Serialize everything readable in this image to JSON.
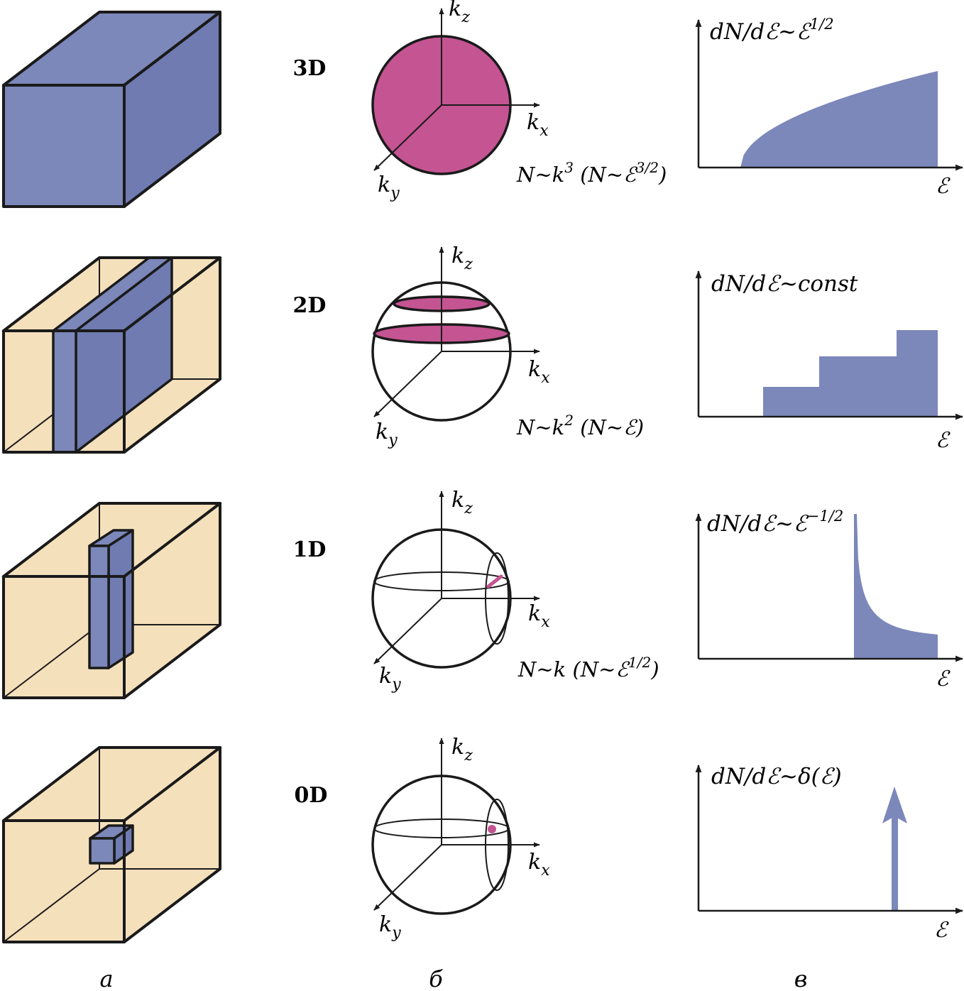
{
  "colors": {
    "blue": "#7c87ba",
    "blue_dark": "#6f7bb1",
    "magenta": "#c45492",
    "beige": "#f5e0bc",
    "stroke": "#1a1a1a"
  },
  "rows": [
    {
      "dim": "3D",
      "kz": "k",
      "kz_sub": "z",
      "kx": "k",
      "kx_sub": "x",
      "ky": "k",
      "ky_sub": "y",
      "scaling": {
        "a": "N~k",
        "a_sup": "3",
        "b": " (N~ℰ",
        "b_sup": "3/2",
        "c": ")"
      },
      "dos": {
        "a": "dN/dℰ~ℰ",
        "a_sup": "1/2"
      },
      "x_axis": "ℰ"
    },
    {
      "dim": "2D",
      "kz": "k",
      "kz_sub": "z",
      "kx": "k",
      "kx_sub": "x",
      "ky": "k",
      "ky_sub": "y",
      "scaling": {
        "a": "N~k",
        "a_sup": "2",
        "b": " (N~ℰ)",
        "b_sup": "",
        "c": ""
      },
      "dos": {
        "a": "dN/dℰ~const",
        "a_sup": ""
      },
      "x_axis": "ℰ"
    },
    {
      "dim": "1D",
      "kz": "k",
      "kz_sub": "z",
      "kx": "k",
      "kx_sub": "x",
      "ky": "k",
      "ky_sub": "y",
      "scaling": {
        "a": "N~k",
        "a_sup": "",
        "b": " (N~ℰ",
        "b_sup": "1/2",
        "c": ")"
      },
      "dos": {
        "a": "dN/dℰ~ℰ",
        "a_sup": "−1/2"
      },
      "x_axis": "ℰ"
    },
    {
      "dim": "0D",
      "kz": "k",
      "kz_sub": "z",
      "kx": "k",
      "kx_sub": "x",
      "ky": "k",
      "ky_sub": "y",
      "scaling": {
        "a": "",
        "a_sup": "",
        "b": "",
        "b_sup": "",
        "c": ""
      },
      "dos": {
        "a": "dN/dℰ~δ(ℰ)",
        "a_sup": ""
      },
      "x_axis": "ℰ"
    }
  ],
  "columns": {
    "a": "а",
    "b": "б",
    "c": "в"
  }
}
